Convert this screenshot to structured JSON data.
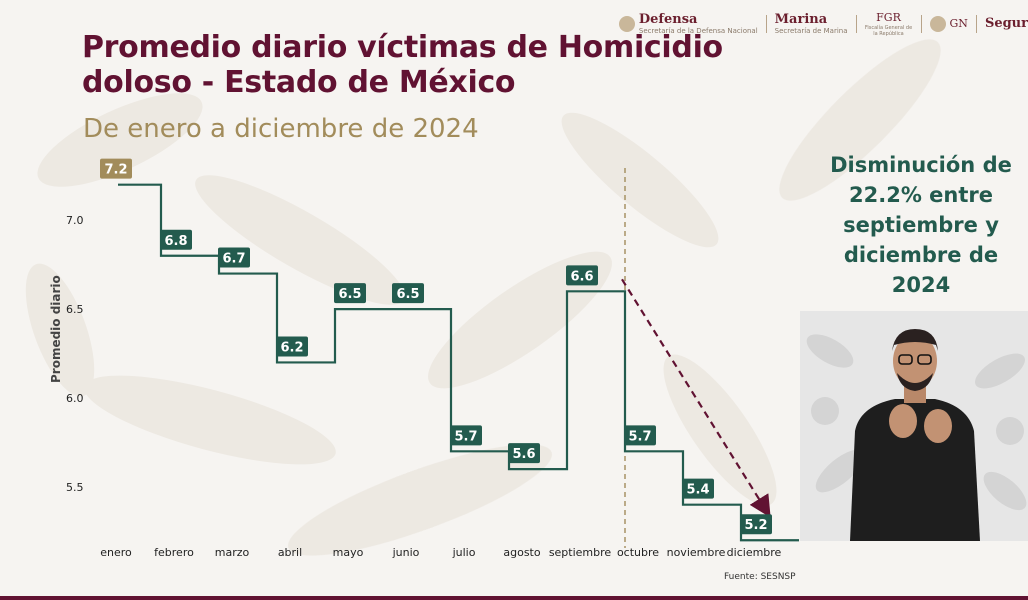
{
  "header": {
    "logos": [
      {
        "name": "Defensa",
        "sub": "Secretaría de la Defensa Nacional"
      },
      {
        "name": "Marina",
        "sub": "Secretaría de Marina"
      },
      {
        "name": "FGR",
        "sub": "Fiscalía General de la República"
      },
      {
        "name": "GN",
        "sub": ""
      },
      {
        "name": "Segur",
        "sub": ""
      }
    ]
  },
  "note": "Disminución de 22.2% entre septiembre y diciembre de 2024",
  "source": "Fuente: SESNSP",
  "colors": {
    "title": "#611232",
    "subtitle": "#a28c5b",
    "line": "#235b4e",
    "label_bg": "#235b4e",
    "first_label_bg": "#a28c5b",
    "arrow": "#611232",
    "divider": "#a28c5b"
  },
  "chart_data": {
    "type": "line",
    "step": true,
    "title": "Promedio diario víctimas de Homicidio doloso - Estado de México",
    "subtitle": "De enero a diciembre de 2024",
    "xlabel": "",
    "ylabel": "Promedio diario",
    "categories": [
      "enero",
      "febrero",
      "marzo",
      "abril",
      "mayo",
      "junio",
      "julio",
      "agosto",
      "septiembre",
      "octubre",
      "noviembre",
      "diciembre"
    ],
    "values": [
      7.2,
      6.8,
      6.7,
      6.2,
      6.5,
      6.5,
      5.7,
      5.6,
      6.6,
      5.7,
      5.4,
      5.2
    ],
    "data_labels": [
      "7.2",
      "6.8",
      "6.7",
      "6.2",
      "6.5",
      "6.5",
      "5.7",
      "5.6",
      "6.6",
      "5.7",
      "5.4",
      "5.2"
    ],
    "yticks": [
      5.5,
      6.0,
      6.5,
      7.0
    ],
    "ytick_labels": [
      "5.5",
      "6.0",
      "6.5",
      "7.0"
    ],
    "ylim": [
      5.1,
      7.35
    ],
    "grid": false,
    "divider_after": "septiembre",
    "trend_arrow": {
      "from": "septiembre",
      "to": "diciembre"
    }
  }
}
